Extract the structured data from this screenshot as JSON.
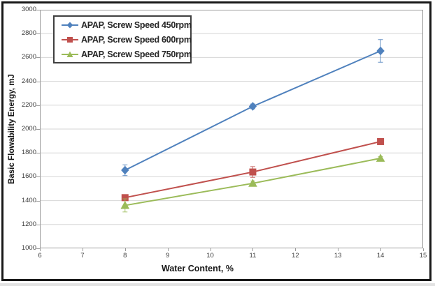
{
  "figure": {
    "background_color": "#ffffff",
    "border_color": "#181818",
    "plot_border_color": "#9c9c9c",
    "gridline_color": "#d6d6d6"
  },
  "chart_data": {
    "type": "line",
    "title": "",
    "xlabel": "Water Content, %",
    "ylabel": "Basic Flowability Energy, mJ",
    "x": [
      8,
      11,
      14
    ],
    "xlim": [
      6,
      15
    ],
    "xticks": [
      6,
      7,
      8,
      9,
      10,
      11,
      12,
      13,
      14,
      15
    ],
    "ylim": [
      1000,
      3000
    ],
    "ytick_step": 200,
    "grid": "horizontal",
    "legend_position": "top-left-inside",
    "series": [
      {
        "name": "APAP, Screw Speed 450rpm",
        "color": "#4f81bd",
        "marker": "diamond",
        "values": [
          1655,
          2190,
          2655
        ],
        "error_mJ": [
          45,
          20,
          95
        ]
      },
      {
        "name": "APAP, Screw Speed 600rpm",
        "color": "#c0504d",
        "marker": "square",
        "values": [
          1425,
          1640,
          1895
        ],
        "error_mJ": [
          15,
          45,
          15
        ]
      },
      {
        "name": "APAP, Screw Speed 750rpm",
        "color": "#9bbb59",
        "marker": "triangle",
        "values": [
          1360,
          1545,
          1755
        ],
        "error_mJ": [
          55,
          20,
          15
        ]
      }
    ]
  }
}
